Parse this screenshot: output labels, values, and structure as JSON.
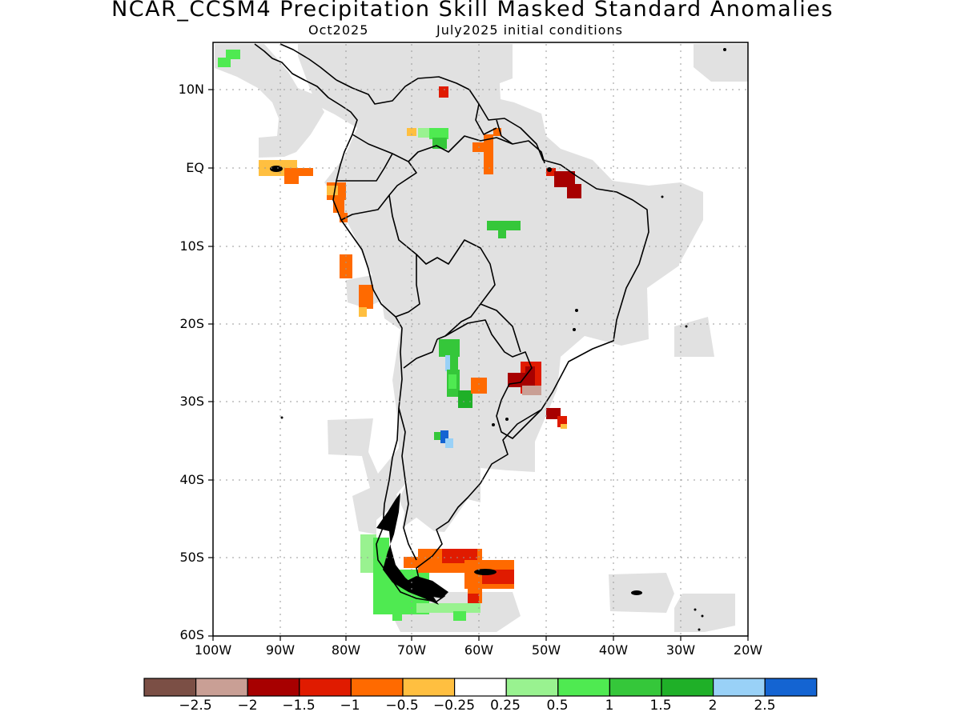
{
  "title": "NCAR_CCSM4 Precipitation Skill Masked Standard Anomalies",
  "subtitle_left": "Oct2025",
  "subtitle_right": "July2025 initial conditions",
  "map": {
    "region": "South America",
    "lon_range": [
      -100,
      -20
    ],
    "lat_range": [
      -60,
      16
    ],
    "grid": true,
    "mask_color": "#e1e1e1",
    "y_ticks": [
      "10N",
      "EQ",
      "10S",
      "20S",
      "30S",
      "40S",
      "50S",
      "60S"
    ],
    "x_ticks": [
      "100W",
      "90W",
      "80W",
      "70W",
      "60W",
      "50W",
      "40W",
      "30W",
      "20W"
    ]
  },
  "colorbar": {
    "colors": [
      "#7b4f45",
      "#c99f95",
      "#a70000",
      "#e01b00",
      "#ff6a00",
      "#ffbf40",
      "#ffffff",
      "#99f290",
      "#4fea51",
      "#35c73a",
      "#1fb028",
      "#99d1f7",
      "#1464d2",
      "#000000"
    ],
    "labels": [
      "-2.5",
      "-2",
      "-1.5",
      "-1",
      "-0.5",
      "-0.25",
      "0.25",
      "0.5",
      "1",
      "1.5",
      "2",
      "2.5"
    ]
  }
}
